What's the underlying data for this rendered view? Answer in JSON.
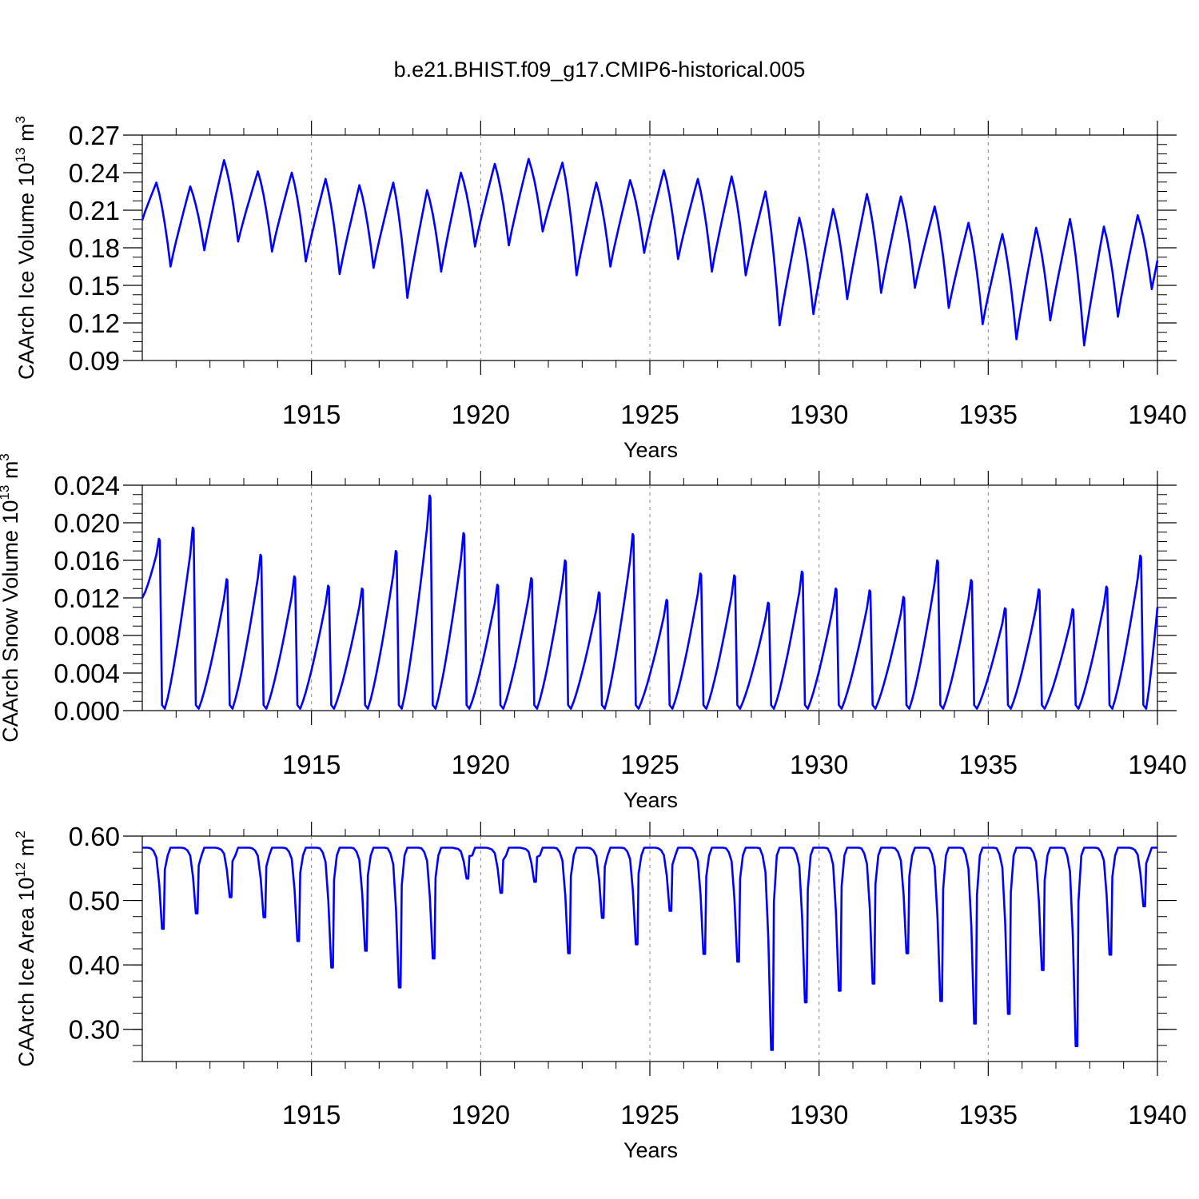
{
  "figure": {
    "title": "b.e21.BHIST.f09_g17.CMIP6-historical.005",
    "line_color": "#0000ff"
  },
  "chart_data": [
    {
      "type": "line",
      "id": "ice_volume",
      "title": "",
      "ylabel": {
        "base": "CAArch Ice Volume 10",
        "exp1": "13",
        "mid": " m",
        "exp2": "3"
      },
      "xlabel": "Years",
      "xlim": [
        1910.0,
        1940.0
      ],
      "ylim": [
        0.09,
        0.27
      ],
      "xticks": [
        "1915",
        "1920",
        "1925",
        "1930",
        "1935",
        "1940"
      ],
      "yticks": [
        "0.09",
        "0.12",
        "0.15",
        "0.18",
        "0.21",
        "0.24",
        "0.27"
      ],
      "cycle": {
        "min_month": 10,
        "rise_end_month": 5,
        "start_month": 1
      },
      "start_value": 0.202,
      "maxima": [
        0.232,
        0.229,
        0.25,
        0.241,
        0.24,
        0.235,
        0.23,
        0.232,
        0.226,
        0.24,
        0.247,
        0.251,
        0.248,
        0.232,
        0.234,
        0.242,
        0.235,
        0.237,
        0.225,
        0.204,
        0.211,
        0.223,
        0.221,
        0.213,
        0.2,
        0.191,
        0.196,
        0.203,
        0.197,
        0.206
      ],
      "minima": [
        0.165,
        0.178,
        0.185,
        0.177,
        0.169,
        0.159,
        0.164,
        0.14,
        0.161,
        0.181,
        0.182,
        0.193,
        0.158,
        0.165,
        0.176,
        0.171,
        0.161,
        0.158,
        0.118,
        0.127,
        0.139,
        0.144,
        0.148,
        0.132,
        0.119,
        0.107,
        0.122,
        0.102,
        0.125,
        0.147
      ],
      "end_value": 0.17
    },
    {
      "type": "line",
      "id": "snow_volume",
      "title": "",
      "ylabel": {
        "base": "CAArch Snow Volume 10",
        "exp1": "13",
        "mid": " m",
        "exp2": "3"
      },
      "xlabel": "Years",
      "xlim": [
        1910.0,
        1940.0
      ],
      "ylim": [
        0.0,
        0.024
      ],
      "xticks": [
        "1915",
        "1920",
        "1925",
        "1930",
        "1935",
        "1940"
      ],
      "yticks": [
        "0.000",
        "0.004",
        "0.008",
        "0.012",
        "0.016",
        "0.020",
        "0.024"
      ],
      "cycle": {
        "zero_months": [
          7,
          8
        ],
        "peak_month": 5,
        "start_month": 0
      },
      "start_value": 0.012,
      "maxima": [
        0.0183,
        0.0195,
        0.014,
        0.0166,
        0.0143,
        0.0133,
        0.013,
        0.017,
        0.0229,
        0.0189,
        0.0134,
        0.0141,
        0.016,
        0.0126,
        0.0188,
        0.0118,
        0.0146,
        0.0144,
        0.0115,
        0.0148,
        0.013,
        0.0128,
        0.0121,
        0.016,
        0.0139,
        0.0109,
        0.0129,
        0.0108,
        0.0132,
        0.0165
      ],
      "end_value": 0.011
    },
    {
      "type": "line",
      "id": "ice_area",
      "title": "",
      "ylabel": {
        "base": "CAArch Ice Area 10",
        "exp1": "12",
        "mid": " m",
        "exp2": "2"
      },
      "xlabel": "Years",
      "xlim": [
        1910.0,
        1940.0
      ],
      "ylim": [
        0.25,
        0.6
      ],
      "xticks": [
        "1915",
        "1920",
        "1925",
        "1930",
        "1935",
        "1940"
      ],
      "yticks": [
        "0.30",
        "0.40",
        "0.50",
        "0.60"
      ],
      "cycle": {
        "min_month": 8,
        "plateau": 0.582
      },
      "minima": [
        0.456,
        0.48,
        0.505,
        0.474,
        0.437,
        0.396,
        0.422,
        0.365,
        0.41,
        0.534,
        0.512,
        0.529,
        0.418,
        0.473,
        0.432,
        0.484,
        0.417,
        0.405,
        0.268,
        0.342,
        0.36,
        0.371,
        0.418,
        0.344,
        0.309,
        0.324,
        0.392,
        0.274,
        0.416,
        0.491
      ]
    }
  ]
}
